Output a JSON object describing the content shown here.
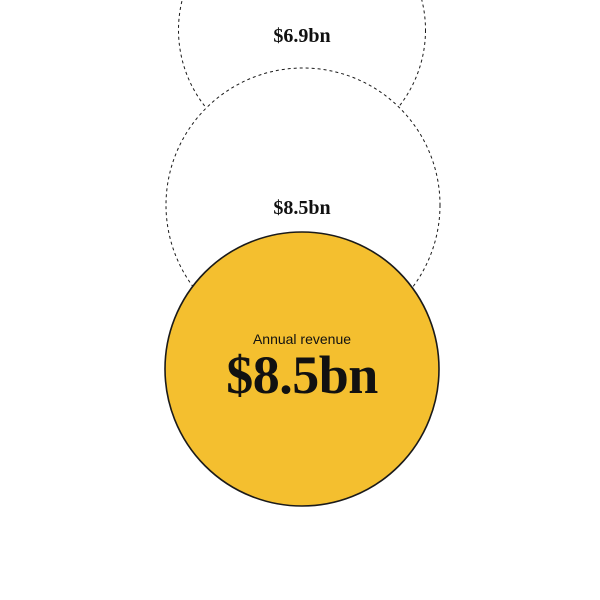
{
  "colors": {
    "highlight_fill": "#f4bf2f",
    "outline": "#1a1a1a",
    "background": "#ffffff"
  },
  "chart_data": {
    "type": "scatter",
    "points": [
      {
        "value": 6.9,
        "label": "$6.9bn",
        "filled": false
      },
      {
        "value": 8.5,
        "label": "$8.5bn",
        "filled": false
      },
      {
        "value": 8.5,
        "label": "$8.5bn",
        "caption": "Annual revenue",
        "filled": true
      }
    ]
  }
}
